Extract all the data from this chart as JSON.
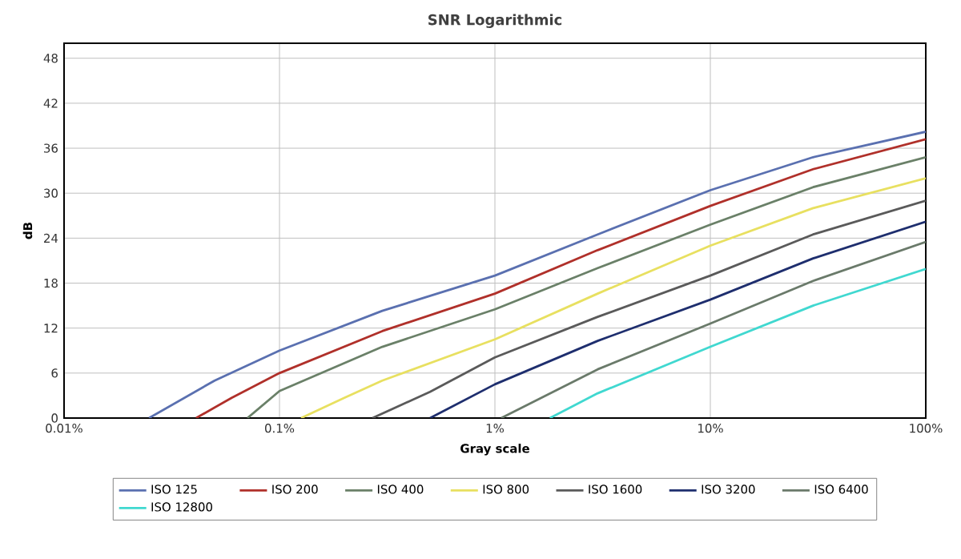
{
  "chart_data": {
    "type": "line",
    "title": "SNR Logarithmic",
    "xlabel": "Gray scale",
    "ylabel": "dB",
    "log": "x",
    "xlim": [
      0.01,
      100
    ],
    "xticks": [
      {
        "value": 0.01,
        "label": "0.01%"
      },
      {
        "value": 0.1,
        "label": "0.1%"
      },
      {
        "value": 1,
        "label": "1%"
      },
      {
        "value": 10,
        "label": "10%"
      },
      {
        "value": 100,
        "label": "100%"
      }
    ],
    "ylim": [
      0,
      50
    ],
    "yticks": [
      0,
      6,
      12,
      18,
      24,
      30,
      36,
      42,
      48
    ],
    "grid": true,
    "legend": "bottom",
    "marker": "none",
    "line_style": "solid",
    "series": [
      {
        "name": "ISO 125",
        "color": "#5a70b0",
        "x": [
          0.0248,
          0.05,
          0.1,
          0.3,
          1,
          3,
          10,
          30,
          100
        ],
        "values": [
          0,
          5,
          9,
          14.3,
          19,
          24.5,
          30.4,
          34.8,
          38.2
        ]
      },
      {
        "name": "ISO 200",
        "color": "#b0302a",
        "x": [
          0.041,
          0.06,
          0.1,
          0.3,
          1,
          3,
          10,
          30,
          100
        ],
        "values": [
          0,
          2.7,
          6,
          11.6,
          16.6,
          22.4,
          28.3,
          33.2,
          37.2
        ]
      },
      {
        "name": "ISO 400",
        "color": "#6a8068",
        "x": [
          0.071,
          0.1,
          0.3,
          1,
          3,
          10,
          30,
          100
        ],
        "values": [
          0,
          3.6,
          9.5,
          14.5,
          20,
          25.8,
          30.8,
          34.8
        ]
      },
      {
        "name": "ISO 800",
        "color": "#e8e060",
        "x": [
          0.126,
          0.2,
          0.3,
          1,
          3,
          10,
          30,
          100
        ],
        "values": [
          0,
          2.7,
          5,
          10.5,
          16.6,
          23,
          28,
          32
        ]
      },
      {
        "name": "ISO 1600",
        "color": "#5a5a5a",
        "x": [
          0.27,
          0.5,
          1,
          3,
          10,
          30,
          100
        ],
        "values": [
          0,
          3.5,
          8.1,
          13.5,
          19,
          24.5,
          29
        ]
      },
      {
        "name": "ISO 3200",
        "color": "#1e2e6e",
        "x": [
          0.5,
          1,
          3,
          10,
          30,
          100
        ],
        "values": [
          0,
          4.5,
          10.3,
          15.8,
          21.3,
          26.2
        ]
      },
      {
        "name": "ISO 6400",
        "color": "#6a7a6a",
        "x": [
          1.07,
          3,
          10,
          30,
          100
        ],
        "values": [
          0,
          6.5,
          12.6,
          18.3,
          23.5
        ]
      },
      {
        "name": "ISO 12800",
        "color": "#40d8d0",
        "x": [
          1.8,
          3,
          10,
          30,
          100
        ],
        "values": [
          0,
          3.3,
          9.5,
          15,
          19.9
        ]
      }
    ]
  }
}
